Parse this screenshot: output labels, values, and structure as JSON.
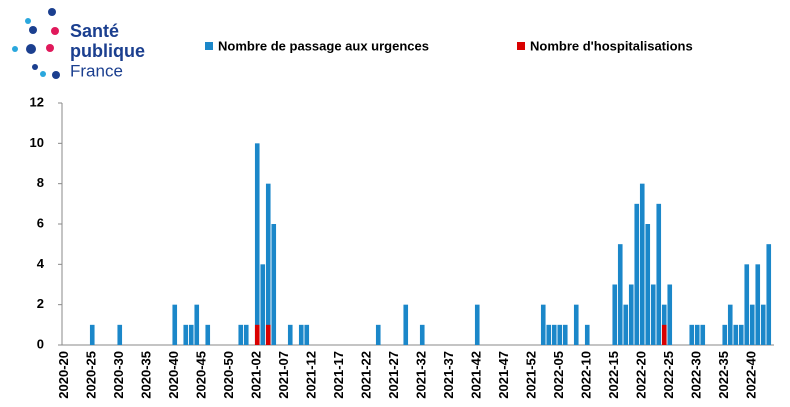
{
  "logo": {
    "line1": "Santé",
    "line2": "publique",
    "line3": "France"
  },
  "chart_data": {
    "type": "bar",
    "categories": [
      "2020-20",
      null,
      null,
      null,
      null,
      "2020-25",
      null,
      null,
      null,
      null,
      "2020-30",
      null,
      null,
      null,
      null,
      "2020-35",
      null,
      null,
      null,
      null,
      "2020-40",
      null,
      null,
      null,
      null,
      "2020-45",
      null,
      null,
      null,
      null,
      "2020-50",
      null,
      null,
      null,
      null,
      "2021-02",
      null,
      null,
      null,
      null,
      "2021-07",
      null,
      null,
      null,
      null,
      "2021-12",
      null,
      null,
      null,
      null,
      "2021-17",
      null,
      null,
      null,
      null,
      "2021-22",
      null,
      null,
      null,
      null,
      "2021-27",
      null,
      null,
      null,
      null,
      "2021-32",
      null,
      null,
      null,
      null,
      "2021-37",
      null,
      null,
      null,
      null,
      "2021-42",
      null,
      null,
      null,
      null,
      "2021-47",
      null,
      null,
      null,
      null,
      "2021-52",
      null,
      null,
      null,
      null,
      "2022-05",
      null,
      null,
      null,
      null,
      "2022-10",
      null,
      null,
      null,
      null,
      "2022-15",
      null,
      null,
      null,
      null,
      "2022-20",
      null,
      null,
      null,
      null,
      "2022-25",
      null,
      null,
      null,
      null,
      "2022-30",
      null,
      null,
      null,
      null,
      "2022-35",
      null,
      null,
      null,
      null,
      "2022-40",
      null,
      null,
      null
    ],
    "series": [
      {
        "name": "Nombre de passage aux urgences",
        "color": "#1b87c9",
        "values": [
          0,
          0,
          0,
          0,
          0,
          1,
          0,
          0,
          0,
          0,
          1,
          0,
          0,
          0,
          0,
          0,
          0,
          0,
          0,
          0,
          2,
          0,
          1,
          1,
          2,
          0,
          1,
          0,
          0,
          0,
          0,
          0,
          1,
          1,
          0,
          10,
          4,
          8,
          6,
          0,
          0,
          1,
          0,
          1,
          1,
          0,
          0,
          0,
          0,
          0,
          0,
          0,
          0,
          0,
          0,
          0,
          0,
          1,
          0,
          0,
          0,
          0,
          2,
          0,
          0,
          1,
          0,
          0,
          0,
          0,
          0,
          0,
          0,
          0,
          0,
          2,
          0,
          0,
          0,
          0,
          0,
          0,
          0,
          0,
          0,
          0,
          0,
          2,
          1,
          1,
          1,
          1,
          0,
          2,
          0,
          1,
          0,
          0,
          0,
          0,
          3,
          5,
          2,
          3,
          7,
          8,
          6,
          3,
          7,
          2,
          3,
          0,
          0,
          0,
          1,
          1,
          1,
          0,
          0,
          0,
          1,
          2,
          1,
          1,
          4,
          2,
          4,
          2,
          5
        ]
      },
      {
        "name": "Nombre d'hospitalisations",
        "color": "#d90000",
        "values": [
          0,
          0,
          0,
          0,
          0,
          0,
          0,
          0,
          0,
          0,
          0,
          0,
          0,
          0,
          0,
          0,
          0,
          0,
          0,
          0,
          0,
          0,
          0,
          0,
          0,
          0,
          0,
          0,
          0,
          0,
          0,
          0,
          0,
          0,
          0,
          1,
          0,
          1,
          0,
          0,
          0,
          0,
          0,
          0,
          0,
          0,
          0,
          0,
          0,
          0,
          0,
          0,
          0,
          0,
          0,
          0,
          0,
          0,
          0,
          0,
          0,
          0,
          0,
          0,
          0,
          0,
          0,
          0,
          0,
          0,
          0,
          0,
          0,
          0,
          0,
          0,
          0,
          0,
          0,
          0,
          0,
          0,
          0,
          0,
          0,
          0,
          0,
          0,
          0,
          0,
          0,
          0,
          0,
          0,
          0,
          0,
          0,
          0,
          0,
          0,
          0,
          0,
          0,
          0,
          0,
          0,
          0,
          0,
          0,
          1,
          0,
          0,
          0,
          0,
          0,
          0,
          0,
          0,
          0,
          0,
          0,
          0,
          0,
          0,
          0,
          0,
          0,
          0,
          0
        ]
      }
    ],
    "ylim": [
      0,
      12
    ],
    "yticks": [
      0,
      2,
      4,
      6,
      8,
      10,
      12
    ],
    "grid": false
  }
}
